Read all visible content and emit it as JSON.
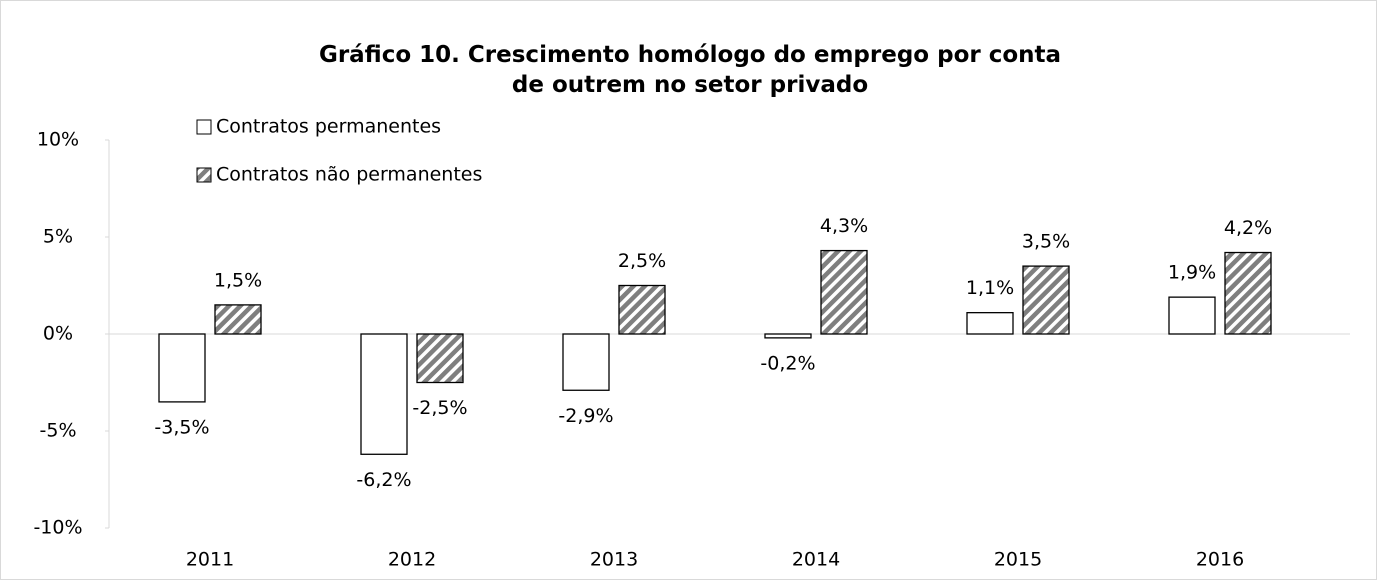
{
  "chart_data": {
    "type": "bar",
    "title": "Gráfico 10. Crescimento homólogo do emprego por conta de outrem no setor privado",
    "categories": [
      "2011",
      "2012",
      "2013",
      "2014",
      "2015",
      "2016"
    ],
    "series": [
      {
        "name": "Contratos permanentes",
        "color": "#ffffff",
        "values": [
          -3.5,
          -6.2,
          -2.9,
          -0.2,
          1.1,
          1.9
        ],
        "value_labels": [
          "-3,5%",
          "-6,2%",
          "-2,9%",
          "-0,2%",
          "1,1%",
          "1,9%"
        ]
      },
      {
        "name": "Contratos não permanentes",
        "color": "#7f7f7f",
        "values": [
          1.5,
          -2.5,
          2.5,
          4.3,
          3.5,
          4.2
        ],
        "value_labels": [
          "1,5%",
          "-2,5%",
          "2,5%",
          "4,3%",
          "3,5%",
          "4,2%"
        ]
      }
    ],
    "ylim": [
      -10,
      10
    ],
    "yticks": [
      {
        "value": -10,
        "label": "-10%"
      },
      {
        "value": -5,
        "label": "-5%"
      },
      {
        "value": 0,
        "label": "0%"
      },
      {
        "value": 5,
        "label": "5%"
      },
      {
        "value": 10,
        "label": "10%"
      }
    ],
    "legend": "top-left"
  }
}
